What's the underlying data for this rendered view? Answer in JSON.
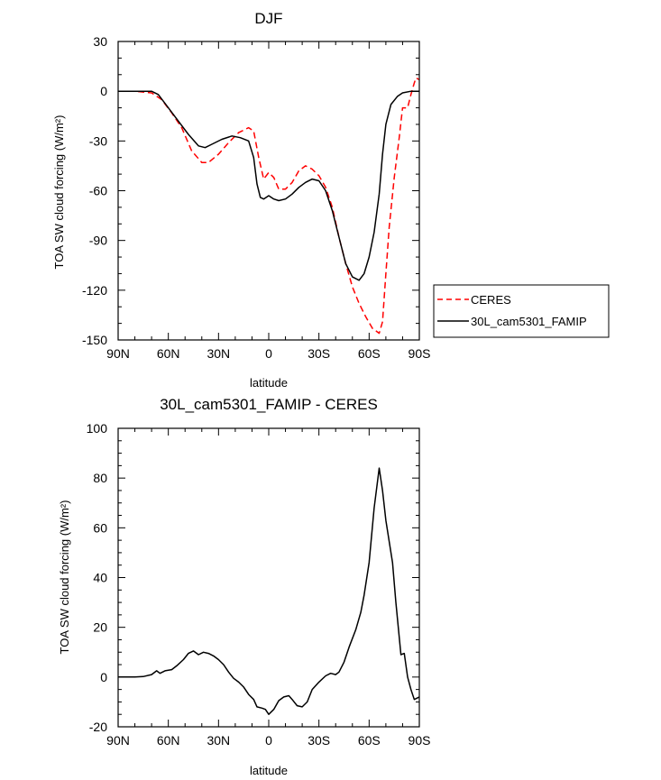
{
  "chart_data": [
    {
      "type": "line",
      "title": "DJF",
      "xlabel": "latitude",
      "ylabel": "TOA SW cloud forcing (W/m²)",
      "xlim": [
        -90,
        90
      ],
      "ylim": [
        -150,
        30
      ],
      "x_ticks": [
        -90,
        -60,
        -30,
        0,
        30,
        60,
        90
      ],
      "x_tick_labels": [
        "90N",
        "60N",
        "30N",
        "0",
        "30S",
        "60S",
        "90S"
      ],
      "y_ticks": [
        30,
        0,
        -30,
        -60,
        -90,
        -120,
        -150
      ],
      "y_tick_labels": [
        "30",
        "0",
        "-30",
        "-60",
        "-90",
        "-120",
        "-150"
      ],
      "legend": {
        "position": "right-outside",
        "entries": [
          "CERES",
          "30L_cam5301_FAMIP"
        ]
      },
      "series": [
        {
          "name": "CERES",
          "color": "#ff0000",
          "dash": "dashed",
          "points": [
            [
              -90,
              0
            ],
            [
              -80,
              0
            ],
            [
              -70,
              -1
            ],
            [
              -64,
              -5
            ],
            [
              -58,
              -13
            ],
            [
              -52,
              -22
            ],
            [
              -46,
              -36
            ],
            [
              -40,
              -43
            ],
            [
              -36,
              -43
            ],
            [
              -30,
              -38
            ],
            [
              -24,
              -31
            ],
            [
              -18,
              -25
            ],
            [
              -12,
              -22
            ],
            [
              -9,
              -24
            ],
            [
              -6,
              -40
            ],
            [
              -3,
              -53
            ],
            [
              0,
              -49
            ],
            [
              3,
              -52
            ],
            [
              6,
              -59
            ],
            [
              10,
              -59
            ],
            [
              14,
              -55
            ],
            [
              18,
              -48
            ],
            [
              22,
              -45
            ],
            [
              26,
              -47
            ],
            [
              30,
              -51
            ],
            [
              34,
              -58
            ],
            [
              38,
              -70
            ],
            [
              42,
              -88
            ],
            [
              46,
              -104
            ],
            [
              50,
              -118
            ],
            [
              54,
              -128
            ],
            [
              58,
              -136
            ],
            [
              62,
              -143
            ],
            [
              66,
              -146
            ],
            [
              68,
              -139
            ],
            [
              70,
              -110
            ],
            [
              72,
              -82
            ],
            [
              75,
              -52
            ],
            [
              78,
              -28
            ],
            [
              80,
              -10
            ],
            [
              83,
              -10
            ],
            [
              85,
              -2
            ],
            [
              87,
              5
            ],
            [
              88,
              8
            ],
            [
              90,
              7
            ]
          ]
        },
        {
          "name": "30L_cam5301_FAMIP",
          "color": "#000000",
          "dash": "solid",
          "points": [
            [
              -90,
              0
            ],
            [
              -80,
              0
            ],
            [
              -70,
              0
            ],
            [
              -66,
              -2
            ],
            [
              -60,
              -10
            ],
            [
              -54,
              -18
            ],
            [
              -48,
              -26
            ],
            [
              -42,
              -33
            ],
            [
              -38,
              -34
            ],
            [
              -34,
              -32
            ],
            [
              -28,
              -29
            ],
            [
              -22,
              -27
            ],
            [
              -17,
              -28
            ],
            [
              -12,
              -30
            ],
            [
              -9,
              -40
            ],
            [
              -7,
              -56
            ],
            [
              -5,
              -64
            ],
            [
              -3,
              -65
            ],
            [
              0,
              -63
            ],
            [
              3,
              -65
            ],
            [
              6,
              -66
            ],
            [
              10,
              -65
            ],
            [
              14,
              -62
            ],
            [
              18,
              -58
            ],
            [
              22,
              -55
            ],
            [
              26,
              -53
            ],
            [
              30,
              -54
            ],
            [
              34,
              -60
            ],
            [
              38,
              -72
            ],
            [
              42,
              -88
            ],
            [
              46,
              -104
            ],
            [
              50,
              -112
            ],
            [
              54,
              -114
            ],
            [
              57,
              -110
            ],
            [
              60,
              -100
            ],
            [
              63,
              -85
            ],
            [
              66,
              -62
            ],
            [
              68,
              -38
            ],
            [
              70,
              -20
            ],
            [
              73,
              -8
            ],
            [
              77,
              -3
            ],
            [
              80,
              -1
            ],
            [
              85,
              0
            ],
            [
              90,
              0
            ]
          ]
        }
      ]
    },
    {
      "type": "line",
      "title": "30L_cam5301_FAMIP - CERES",
      "xlabel": "latitude",
      "ylabel": "TOA SW cloud forcing (W/m²)",
      "xlim": [
        -90,
        90
      ],
      "ylim": [
        -20,
        100
      ],
      "x_ticks": [
        -90,
        -60,
        -30,
        0,
        30,
        60,
        90
      ],
      "x_tick_labels": [
        "90N",
        "60N",
        "30N",
        "0",
        "30S",
        "60S",
        "90S"
      ],
      "y_ticks": [
        100,
        80,
        60,
        40,
        20,
        0,
        -20
      ],
      "y_tick_labels": [
        "100",
        "80",
        "60",
        "40",
        "20",
        "0",
        "-20"
      ],
      "series": [
        {
          "color": "#000000",
          "dash": "solid",
          "points": [
            [
              -90,
              0
            ],
            [
              -80,
              0
            ],
            [
              -75,
              0.2
            ],
            [
              -70,
              1
            ],
            [
              -67,
              2.5
            ],
            [
              -65,
              1.5
            ],
            [
              -62,
              2.5
            ],
            [
              -58,
              3
            ],
            [
              -55,
              4.5
            ],
            [
              -51,
              7
            ],
            [
              -48,
              9.5
            ],
            [
              -45,
              10.5
            ],
            [
              -42,
              9
            ],
            [
              -39,
              10
            ],
            [
              -36,
              9.5
            ],
            [
              -33,
              8.5
            ],
            [
              -30,
              7
            ],
            [
              -27,
              5
            ],
            [
              -24,
              2
            ],
            [
              -21,
              -0.5
            ],
            [
              -18,
              -2
            ],
            [
              -15,
              -4
            ],
            [
              -12,
              -7
            ],
            [
              -9,
              -9
            ],
            [
              -7,
              -12
            ],
            [
              -4,
              -12.5
            ],
            [
              -2,
              -13
            ],
            [
              0,
              -15
            ],
            [
              3,
              -13
            ],
            [
              6,
              -9.5
            ],
            [
              9,
              -8
            ],
            [
              12,
              -7.5
            ],
            [
              14,
              -9
            ],
            [
              17,
              -11.5
            ],
            [
              20,
              -12
            ],
            [
              23,
              -10
            ],
            [
              26,
              -5
            ],
            [
              30,
              -2
            ],
            [
              34,
              0.5
            ],
            [
              37,
              1.5
            ],
            [
              40,
              1
            ],
            [
              42,
              2
            ],
            [
              45,
              6
            ],
            [
              48,
              12
            ],
            [
              52,
              19
            ],
            [
              55,
              26
            ],
            [
              57,
              33
            ],
            [
              60,
              46
            ],
            [
              63,
              68
            ],
            [
              66,
              84
            ],
            [
              68,
              75
            ],
            [
              70,
              63
            ],
            [
              74,
              46
            ],
            [
              76,
              30
            ],
            [
              79,
              9
            ],
            [
              81,
              9.5
            ],
            [
              83,
              0
            ],
            [
              85,
              -5
            ],
            [
              87,
              -9
            ],
            [
              90,
              -8
            ]
          ]
        }
      ]
    }
  ]
}
